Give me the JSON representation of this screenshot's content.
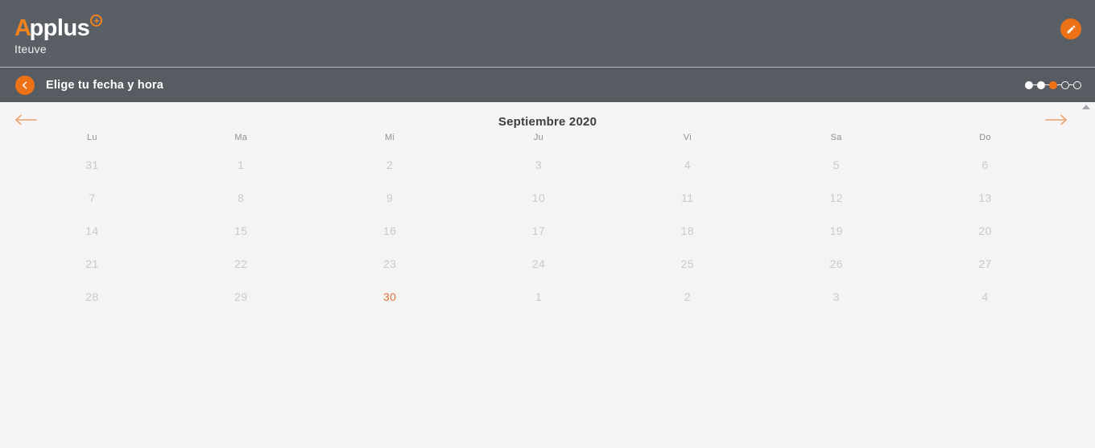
{
  "header": {
    "brand": {
      "letter_a": "A",
      "rest": "pplus",
      "plus_mark": "+",
      "subtitle": "Iteuve"
    },
    "edit_button_icon": "pencil-icon"
  },
  "subheader": {
    "back_button_icon": "chevron-left-icon",
    "title": "Elige tu fecha y hora",
    "stepper_steps": [
      "done",
      "done",
      "active",
      "todo",
      "todo"
    ]
  },
  "calendar": {
    "month_title": "Septiembre 2020",
    "prev_icon": "arrow-left-icon",
    "next_icon": "arrow-right-icon",
    "weekdays": [
      "Lu",
      "Ma",
      "Mi",
      "Ju",
      "Vi",
      "Sa",
      "Do"
    ],
    "weeks": [
      [
        {
          "d": "31",
          "s": "disabled"
        },
        {
          "d": "1",
          "s": "disabled"
        },
        {
          "d": "2",
          "s": "disabled"
        },
        {
          "d": "3",
          "s": "disabled"
        },
        {
          "d": "4",
          "s": "disabled"
        },
        {
          "d": "5",
          "s": "disabled"
        },
        {
          "d": "6",
          "s": "disabled"
        }
      ],
      [
        {
          "d": "7",
          "s": "disabled"
        },
        {
          "d": "8",
          "s": "disabled"
        },
        {
          "d": "9",
          "s": "disabled"
        },
        {
          "d": "10",
          "s": "disabled"
        },
        {
          "d": "11",
          "s": "disabled"
        },
        {
          "d": "12",
          "s": "disabled"
        },
        {
          "d": "13",
          "s": "disabled"
        }
      ],
      [
        {
          "d": "14",
          "s": "disabled"
        },
        {
          "d": "15",
          "s": "disabled"
        },
        {
          "d": "16",
          "s": "disabled"
        },
        {
          "d": "17",
          "s": "disabled"
        },
        {
          "d": "18",
          "s": "disabled"
        },
        {
          "d": "19",
          "s": "disabled"
        },
        {
          "d": "20",
          "s": "disabled"
        }
      ],
      [
        {
          "d": "21",
          "s": "disabled"
        },
        {
          "d": "22",
          "s": "disabled"
        },
        {
          "d": "23",
          "s": "disabled"
        },
        {
          "d": "24",
          "s": "disabled"
        },
        {
          "d": "25",
          "s": "disabled"
        },
        {
          "d": "26",
          "s": "disabled"
        },
        {
          "d": "27",
          "s": "disabled"
        }
      ],
      [
        {
          "d": "28",
          "s": "disabled"
        },
        {
          "d": "29",
          "s": "disabled"
        },
        {
          "d": "30",
          "s": "selected"
        },
        {
          "d": "1",
          "s": "disabled"
        },
        {
          "d": "2",
          "s": "disabled"
        },
        {
          "d": "3",
          "s": "disabled"
        },
        {
          "d": "4",
          "s": "disabled"
        }
      ]
    ]
  },
  "colors": {
    "header_bg": "#5a5f66",
    "subheader_bg": "#575c63",
    "divider": "#b3b9c0",
    "accent_orange": "#ed7117",
    "logo_orange": "#f0831e",
    "nav_arrow_orange": "#eba26b",
    "selected_day": "#e0763f",
    "disabled_day": "#c9cacb",
    "weekday_label": "#8f9091",
    "month_title": "#3d3f41",
    "content_bg": "#f6f4f4",
    "grid_bg": "#f4f4f2"
  }
}
